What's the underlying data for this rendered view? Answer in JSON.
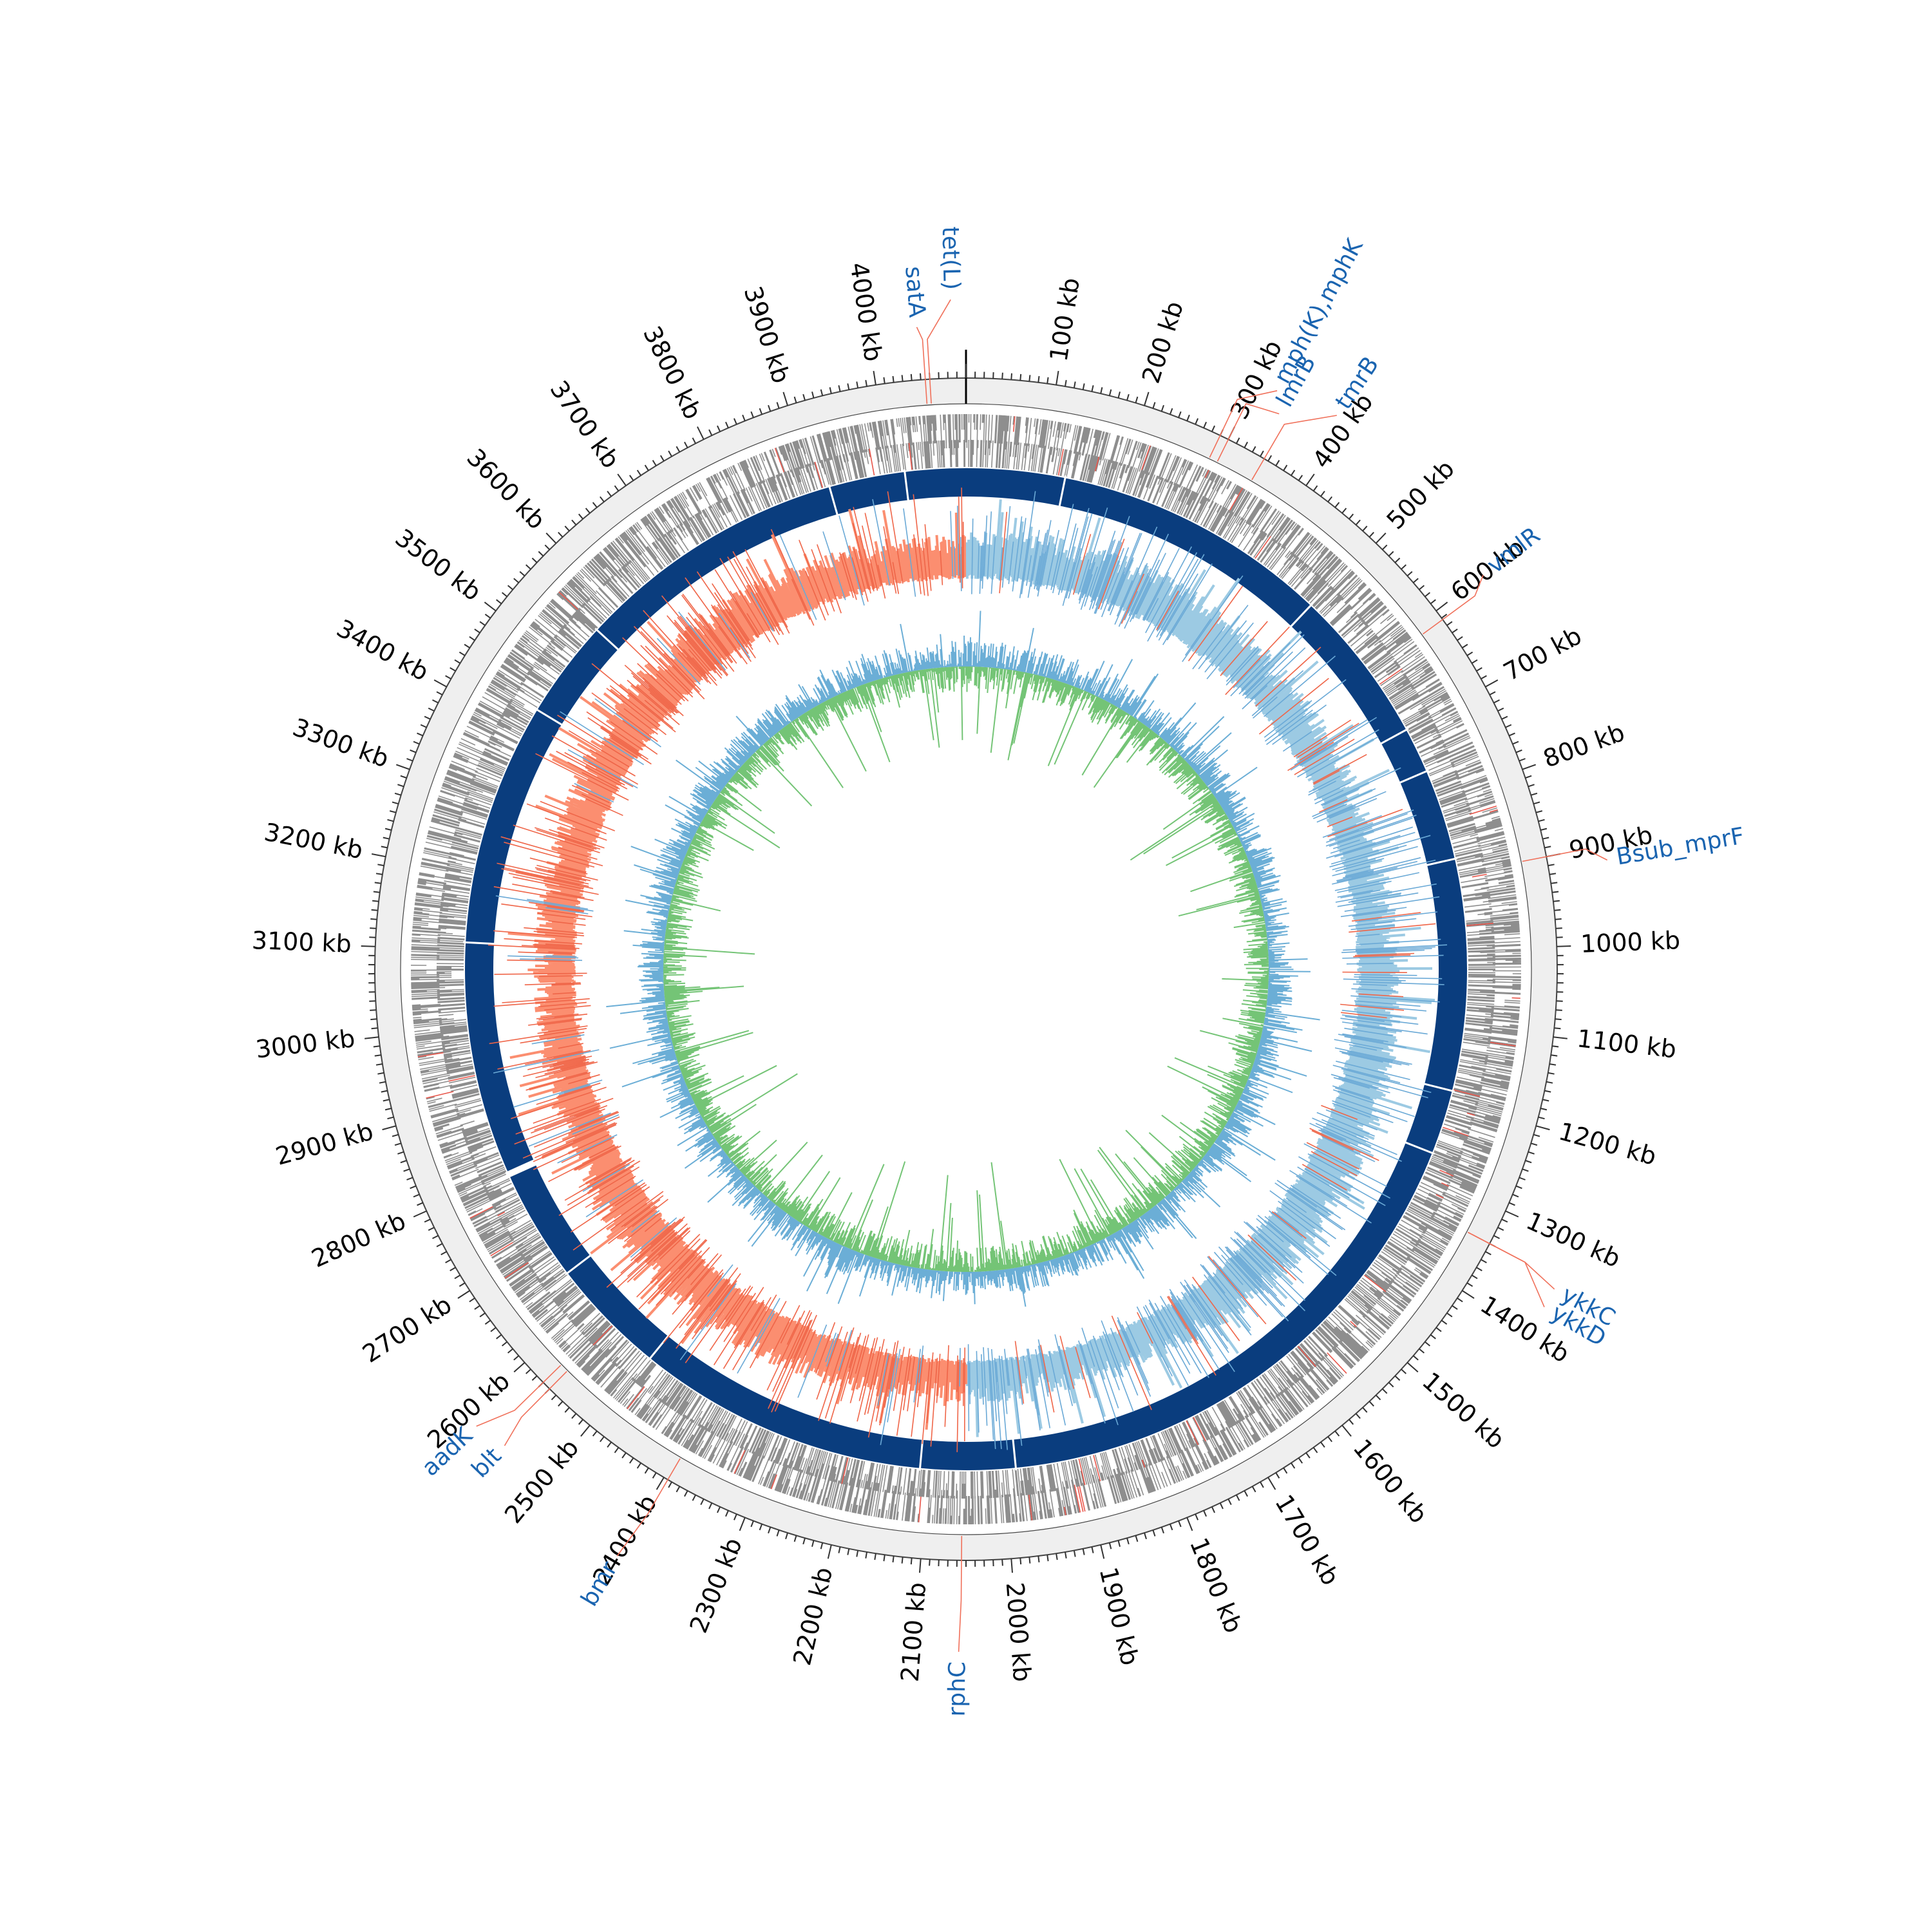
{
  "genome_map": {
    "genome_length_kb": 4100,
    "tick_label_unit": "kb",
    "tick_labels": [
      "100 kb",
      "200 kb",
      "300 kb",
      "400 kb",
      "500 kb",
      "600 kb",
      "700 kb",
      "800 kb",
      "900 kb",
      "1000 kb",
      "1100 kb",
      "1200 kb",
      "1300 kb",
      "1400 kb",
      "1500 kb",
      "1600 kb",
      "1700 kb",
      "1800 kb",
      "1900 kb",
      "2000 kb",
      "2100 kb",
      "2200 kb",
      "2300 kb",
      "2400 kb",
      "2500 kb",
      "2600 kb",
      "2700 kb",
      "2800 kb",
      "2900 kb",
      "3000 kb",
      "3100 kb",
      "3200 kb",
      "3300 kb",
      "3400 kb",
      "3500 kb",
      "3600 kb",
      "3700 kb",
      "3800 kb",
      "3900 kb",
      "4000 kb"
    ],
    "tick_positions_kb": [
      100,
      200,
      300,
      400,
      500,
      600,
      700,
      800,
      900,
      1000,
      1100,
      1200,
      1300,
      1400,
      1500,
      1600,
      1700,
      1800,
      1900,
      2000,
      2100,
      2200,
      2300,
      2400,
      2500,
      2600,
      2700,
      2800,
      2900,
      3000,
      3100,
      3200,
      3300,
      3400,
      3500,
      3600,
      3700,
      3800,
      3900,
      4000
    ],
    "gene_annotations": [
      {
        "label": "tet(L)",
        "position_kb": 4060
      },
      {
        "label": "satA",
        "position_kb": 4055
      },
      {
        "label": "mph(K),mphK",
        "position_kb": 290
      },
      {
        "label": "lmrB",
        "position_kb": 300
      },
      {
        "label": "tmrB",
        "position_kb": 345
      },
      {
        "label": "vmlR",
        "position_kb": 612
      },
      {
        "label": "Bsub_mprF",
        "position_kb": 900
      },
      {
        "label": "ykkC",
        "position_kb": 1340
      },
      {
        "label": "ykkD",
        "position_kb": 1340
      },
      {
        "label": "rphC",
        "position_kb": 2055
      },
      {
        "label": "bmr",
        "position_kb": 2395
      },
      {
        "label": "blt",
        "position_kb": 2560
      },
      {
        "label": "aadK",
        "position_kb": 2570
      }
    ],
    "gap_positions_kb": [
      130,
      495,
      700,
      760,
      880,
      1185,
      1270,
      1985,
      2110,
      2495,
      2650,
      2800,
      3110,
      3430,
      3560,
      3920,
      4020
    ]
  },
  "colors": {
    "background": "#ffffff",
    "outer_ring_fill": "#efefef",
    "ring_stroke": "#444444",
    "ticks": "#333333",
    "feature_gray": "#8e8e8e",
    "feature_red": "#e8554a",
    "contig_ring": "#0a3d7e",
    "skew_positive": "#9ccae3",
    "skew_positive_line": "#6aa9d6",
    "skew_negative": "#fb8e70",
    "skew_negative_line": "#ef6548",
    "gc_outer": "#6baed6",
    "gc_inner": "#74c476",
    "annotation_line": "#f0705a",
    "annotation_text": "#1a64b0",
    "origin_marker": "#000000"
  },
  "icons": [
    "origin-tick-icon"
  ]
}
